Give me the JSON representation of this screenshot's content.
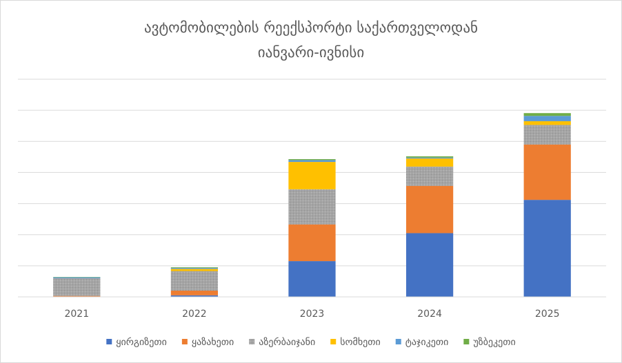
{
  "chart_data": {
    "type": "bar",
    "stacked": true,
    "title": "ავტომობილების რეექსპორტი საქართველოდან",
    "subtitle": "იანვარი-ივნისი",
    "categories": [
      "2021",
      "2022",
      "2023",
      "2024",
      "2025"
    ],
    "ylim": [
      0,
      7
    ],
    "yticks": [
      0,
      1,
      2,
      3,
      4,
      5,
      6,
      7
    ],
    "y_tick_labels_shown": false,
    "grid": true,
    "legend_position": "bottom",
    "series": [
      {
        "name": "ყირგიზეთი",
        "color": "#4472C4",
        "values": [
          0.0,
          0.05,
          1.15,
          2.05,
          3.12
        ]
      },
      {
        "name": "ყაზახეთი",
        "color": "#ED7D31",
        "values": [
          0.03,
          0.15,
          1.18,
          1.52,
          1.78
        ]
      },
      {
        "name": "აზერბაიჯანი",
        "color": "#A5A5A5",
        "patterned": true,
        "values": [
          0.57,
          0.63,
          1.13,
          0.62,
          0.63
        ]
      },
      {
        "name": "სომხეთი",
        "color": "#FFC000",
        "values": [
          0.0,
          0.07,
          0.88,
          0.26,
          0.12
        ]
      },
      {
        "name": "ტაჯიკეთი",
        "color": "#5B9BD5",
        "values": [
          0.03,
          0.03,
          0.06,
          0.03,
          0.17
        ]
      },
      {
        "name": "უზბეკეთი",
        "color": "#70AD47",
        "values": [
          0.01,
          0.02,
          0.03,
          0.04,
          0.09
        ]
      }
    ]
  }
}
